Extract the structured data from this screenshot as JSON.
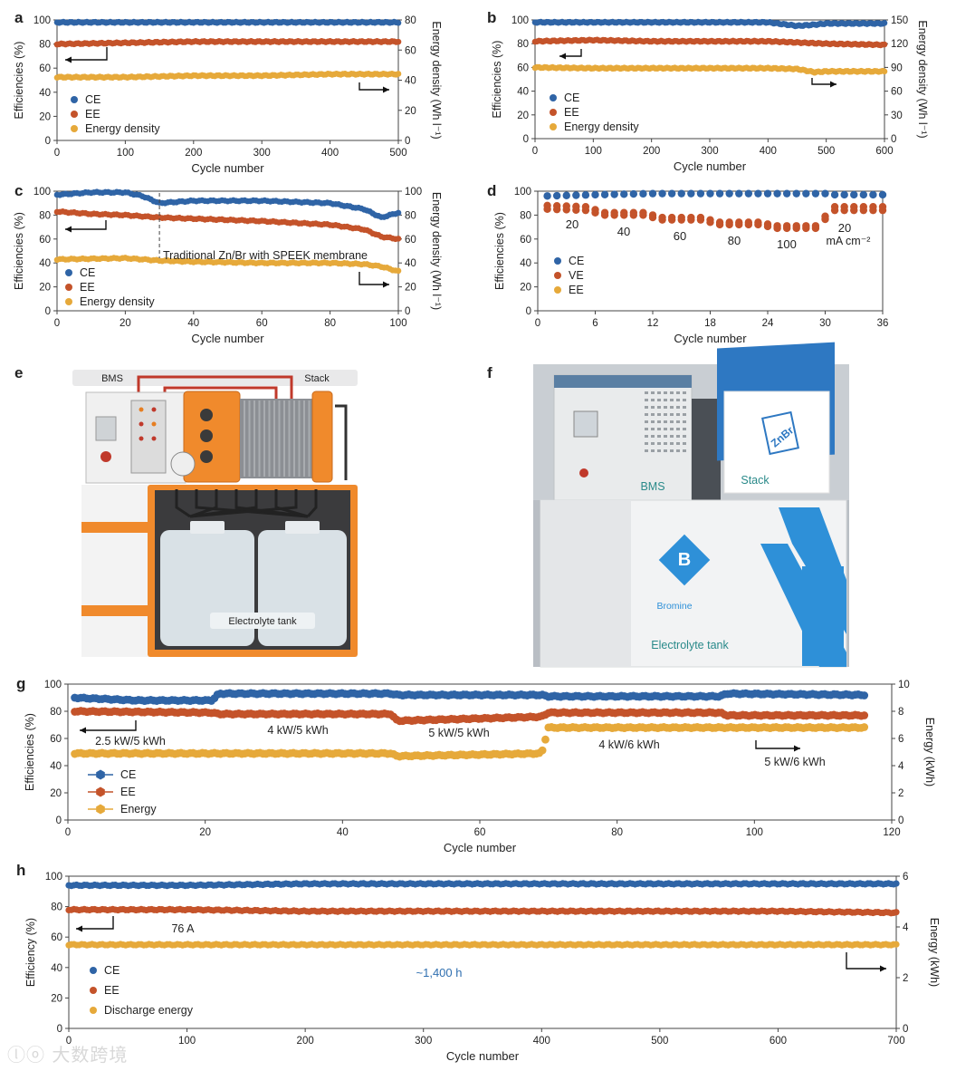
{
  "colors": {
    "ce": "#2f64a6",
    "ee": "#c4532a",
    "yellow": "#e6a93a",
    "tag": "#2a8a8a",
    "legend_text": "#222222"
  },
  "panels": {
    "a": {
      "letter": "a",
      "xlabel": "Cycle number",
      "ylabel": "Efficiencies (%)",
      "ylabel2": "Energy density (Wh l⁻¹)",
      "xticks": [
        "0",
        "100",
        "200",
        "300",
        "400",
        "500"
      ],
      "yticks": [
        "0",
        "20",
        "40",
        "60",
        "80",
        "100"
      ],
      "y2ticks": [
        "0",
        "20",
        "40",
        "60",
        "80"
      ],
      "legend": [
        "CE",
        "EE",
        "Energy density"
      ]
    },
    "b": {
      "letter": "b",
      "xlabel": "Cycle number",
      "ylabel": "Efficiencies (%)",
      "ylabel2": "Energy density (Wh l⁻¹)",
      "xticks": [
        "0",
        "100",
        "200",
        "300",
        "400",
        "500",
        "600"
      ],
      "yticks": [
        "0",
        "20",
        "40",
        "60",
        "80",
        "100"
      ],
      "y2ticks": [
        "0",
        "30",
        "60",
        "90",
        "120",
        "150"
      ],
      "legend": [
        "CE",
        "EE",
        "Energy density"
      ]
    },
    "c": {
      "letter": "c",
      "xlabel": "Cycle number",
      "ylabel": "Efficiencies (%)",
      "ylabel2": "Energy density (Wh l⁻¹)",
      "xticks": [
        "0",
        "20",
        "40",
        "60",
        "80",
        "100"
      ],
      "yticks": [
        "0",
        "20",
        "40",
        "60",
        "80",
        "100"
      ],
      "y2ticks": [
        "0",
        "20",
        "40",
        "60",
        "80",
        "100"
      ],
      "legend": [
        "CE",
        "EE",
        "Energy density"
      ],
      "annotation": "Traditional Zn/Br with SPEEK membrane"
    },
    "d": {
      "letter": "d",
      "xlabel": "Cycle number",
      "ylabel": "Efficiencies (%)",
      "xticks": [
        "0",
        "6",
        "12",
        "18",
        "24",
        "30",
        "36"
      ],
      "yticks": [
        "0",
        "20",
        "40",
        "60",
        "80",
        "100"
      ],
      "legend": [
        "CE",
        "VE",
        "EE"
      ],
      "currents": [
        "20",
        "40",
        "60",
        "80",
        "100",
        "20"
      ],
      "unit": "mA cm⁻²"
    },
    "e": {
      "letter": "e",
      "bms": "BMS",
      "stack": "Stack",
      "tank": "Electrolyte tank"
    },
    "f": {
      "letter": "f",
      "bms": "BMS",
      "stack": "Stack",
      "bromine": "Bromine",
      "tank": "Electrolyte tank",
      "logo": "ZnBr"
    },
    "g": {
      "letter": "g",
      "xlabel": "Cycle number",
      "ylabel": "Efficiencies (%)",
      "ylabel2": "Energy (kWh)",
      "xticks": [
        "0",
        "20",
        "40",
        "60",
        "80",
        "100",
        "120"
      ],
      "yticks": [
        "0",
        "20",
        "40",
        "60",
        "80",
        "100"
      ],
      "y2ticks": [
        "0",
        "2",
        "4",
        "6",
        "8",
        "10"
      ],
      "legend": [
        "CE",
        "EE",
        "Energy"
      ],
      "segments": [
        "2.5 kW/5 kWh",
        "4 kW/5 kWh",
        "5 kW/5 kWh",
        "4 kW/6 kWh",
        "5 kW/6 kWh"
      ]
    },
    "h": {
      "letter": "h",
      "xlabel": "Cycle number",
      "ylabel": "Efficiency (%)",
      "ylabel2": "Energy (kWh)",
      "xticks": [
        "0",
        "100",
        "200",
        "300",
        "400",
        "500",
        "600",
        "700"
      ],
      "yticks": [
        "0",
        "20",
        "40",
        "60",
        "80",
        "100"
      ],
      "y2ticks": [
        "0",
        "2",
        "4",
        "6"
      ],
      "legend": [
        "CE",
        "EE",
        "Discharge energy"
      ],
      "current": "76 A",
      "duration": "~1,400 h"
    }
  },
  "chart_data": [
    {
      "panel": "a",
      "type": "scatter",
      "xlim": [
        0,
        500
      ],
      "ylim": [
        0,
        100
      ],
      "y2lim": [
        0,
        80
      ],
      "series": [
        {
          "name": "CE",
          "x": [
            0,
            100,
            200,
            300,
            400,
            500
          ],
          "values": [
            98,
            98,
            98,
            98,
            98,
            98
          ]
        },
        {
          "name": "EE",
          "x": [
            0,
            100,
            200,
            300,
            400,
            500
          ],
          "values": [
            80,
            81,
            82,
            82,
            82,
            82
          ]
        },
        {
          "name": "Energy density",
          "axis": "right",
          "x": [
            0,
            100,
            200,
            300,
            400,
            500
          ],
          "values": [
            42,
            42,
            43,
            43,
            44,
            44
          ]
        }
      ]
    },
    {
      "panel": "b",
      "type": "scatter",
      "xlim": [
        0,
        600
      ],
      "ylim": [
        0,
        100
      ],
      "y2lim": [
        0,
        150
      ],
      "series": [
        {
          "name": "CE",
          "x": [
            0,
            100,
            200,
            300,
            400,
            450,
            480,
            500,
            600
          ],
          "values": [
            98,
            98,
            98,
            98,
            98,
            95,
            96,
            97,
            97
          ]
        },
        {
          "name": "EE",
          "x": [
            0,
            100,
            200,
            300,
            400,
            500,
            600
          ],
          "values": [
            82,
            83,
            82,
            82,
            82,
            80,
            79
          ]
        },
        {
          "name": "Energy density",
          "axis": "right",
          "x": [
            0,
            100,
            200,
            300,
            400,
            450,
            480,
            500,
            600
          ],
          "values": [
            90,
            89,
            89,
            89,
            89,
            88,
            84,
            85,
            85
          ]
        }
      ]
    },
    {
      "panel": "c",
      "type": "scatter",
      "xlim": [
        0,
        100
      ],
      "ylim": [
        0,
        100
      ],
      "y2lim": [
        0,
        100
      ],
      "series": [
        {
          "name": "CE",
          "x": [
            0,
            10,
            20,
            25,
            30,
            40,
            60,
            80,
            90,
            95,
            100
          ],
          "values": [
            97,
            99,
            99,
            96,
            90,
            92,
            92,
            90,
            85,
            78,
            82
          ]
        },
        {
          "name": "EE",
          "x": [
            0,
            10,
            20,
            30,
            40,
            60,
            80,
            90,
            95,
            100
          ],
          "values": [
            83,
            81,
            80,
            78,
            77,
            75,
            72,
            68,
            62,
            60
          ]
        },
        {
          "name": "Energy density",
          "axis": "right",
          "x": [
            0,
            20,
            30,
            40,
            60,
            80,
            90,
            95,
            100
          ],
          "values": [
            43,
            44,
            42,
            41,
            40,
            40,
            39,
            37,
            33
          ]
        }
      ]
    },
    {
      "panel": "d",
      "type": "scatter",
      "xlim": [
        0,
        36
      ],
      "ylim": [
        0,
        100
      ],
      "series": [
        {
          "name": "CE",
          "x": [
            1,
            6,
            12,
            18,
            24,
            30,
            31,
            36
          ],
          "values": [
            96,
            97,
            98,
            98,
            98,
            98,
            97,
            97
          ]
        },
        {
          "name": "VE",
          "x": [
            1,
            5,
            7,
            11,
            13,
            17,
            19,
            23,
            25,
            29,
            31,
            36
          ],
          "values": [
            88,
            87,
            82,
            82,
            78,
            78,
            74,
            74,
            71,
            71,
            87,
            87
          ]
        },
        {
          "name": "EE",
          "x": [
            1,
            5,
            7,
            11,
            13,
            17,
            19,
            23,
            25,
            29,
            31,
            36
          ],
          "values": [
            85,
            84,
            80,
            80,
            76,
            76,
            72,
            72,
            69,
            69,
            84,
            84
          ]
        }
      ]
    },
    {
      "panel": "g",
      "type": "scatter",
      "xlim": [
        0,
        120
      ],
      "ylim": [
        0,
        100
      ],
      "y2lim": [
        0,
        10
      ],
      "series": [
        {
          "name": "CE",
          "x": [
            1,
            10,
            21,
            22,
            47,
            48,
            69,
            70,
            95,
            96,
            116
          ],
          "values": [
            90,
            88,
            88,
            93,
            93,
            92,
            92,
            91,
            91,
            93,
            92
          ]
        },
        {
          "name": "EE",
          "x": [
            1,
            21,
            22,
            47,
            48,
            69,
            70,
            95,
            96,
            116
          ],
          "values": [
            80,
            79,
            78,
            78,
            73,
            76,
            79,
            79,
            77,
            77
          ]
        },
        {
          "name": "Energy",
          "axis": "right",
          "x": [
            1,
            47,
            48,
            69,
            70,
            116
          ],
          "values": [
            4.9,
            4.9,
            4.7,
            4.9,
            6.8,
            6.8
          ]
        }
      ]
    },
    {
      "panel": "h",
      "type": "scatter",
      "xlim": [
        0,
        700
      ],
      "ylim": [
        0,
        100
      ],
      "y2lim": [
        0,
        6
      ],
      "series": [
        {
          "name": "CE",
          "x": [
            0,
            100,
            200,
            300,
            400,
            500,
            600,
            700
          ],
          "values": [
            94,
            94,
            95,
            95,
            95,
            95,
            95,
            95
          ]
        },
        {
          "name": "EE",
          "x": [
            0,
            100,
            200,
            300,
            400,
            500,
            600,
            700
          ],
          "values": [
            78,
            78,
            77,
            77,
            77,
            77,
            77,
            76
          ]
        },
        {
          "name": "Discharge energy",
          "axis": "right",
          "x": [
            0,
            100,
            200,
            300,
            400,
            500,
            600,
            700
          ],
          "values": [
            3.3,
            3.3,
            3.3,
            3.3,
            3.3,
            3.3,
            3.3,
            3.3
          ]
        }
      ]
    }
  ]
}
